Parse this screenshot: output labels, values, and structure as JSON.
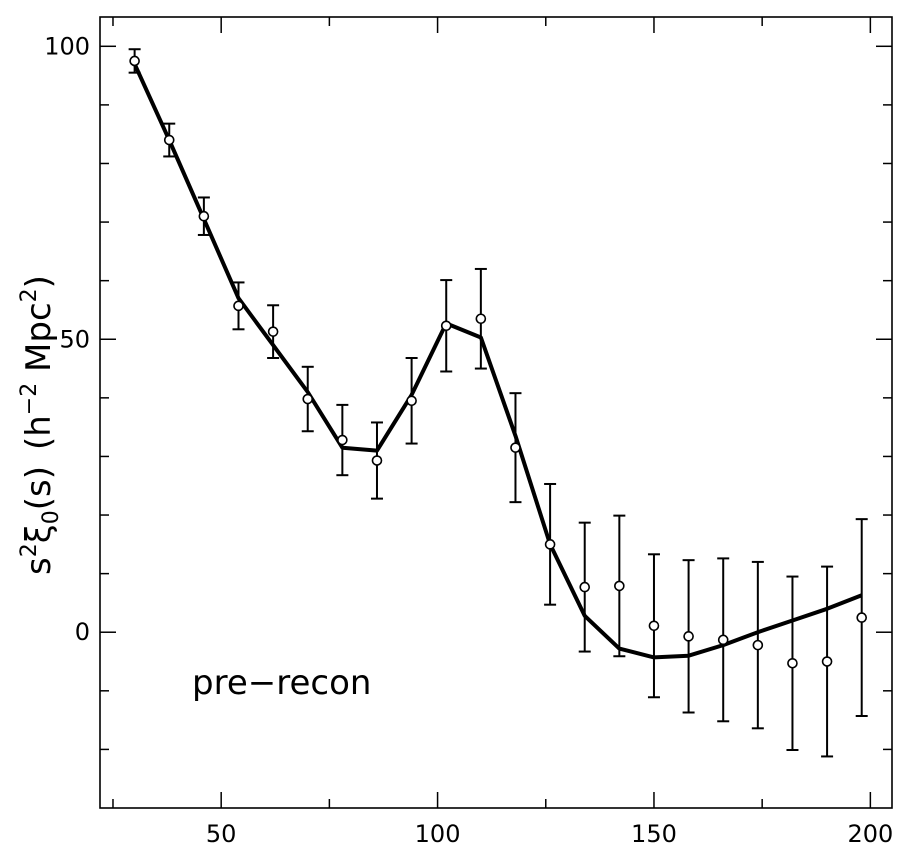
{
  "chart_data": {
    "type": "scatter",
    "title": "",
    "xlabel": "",
    "ylabel": {
      "s": "s",
      "sq": "2",
      "xi": "ξ",
      "sub": "0",
      "args": "(s)",
      "units_open": "(h",
      "units_exp": "−2",
      "units_mid": " Mpc",
      "units_sq": "2",
      "units_close": ")"
    },
    "annotation": "pre−recon",
    "xlim": [
      22,
      205
    ],
    "ylim": [
      -30,
      105
    ],
    "x_ticks": [
      50,
      100,
      150,
      200
    ],
    "x_tick_labels": [
      "50",
      "100",
      "150",
      "200"
    ],
    "y_ticks": [
      0,
      50,
      100
    ],
    "y_tick_labels": [
      "0",
      "50",
      "100"
    ],
    "grid": false,
    "legend": "none",
    "series": [
      {
        "kind": "points_with_errors",
        "x": [
          30,
          38,
          46,
          54,
          62,
          70,
          78,
          86,
          94,
          102,
          110,
          118,
          126,
          134,
          142,
          150,
          158,
          166,
          174,
          182,
          190,
          198
        ],
        "y": [
          97.5,
          84.0,
          71.0,
          55.7,
          51.3,
          39.8,
          32.8,
          29.3,
          39.5,
          52.3,
          53.5,
          31.5,
          15.0,
          7.7,
          7.9,
          1.1,
          -0.7,
          -1.3,
          -2.2,
          -5.3,
          -5.0,
          2.5
        ],
        "yerr": [
          2.0,
          2.8,
          3.2,
          4.0,
          4.5,
          5.5,
          6.0,
          6.5,
          7.3,
          7.8,
          8.5,
          9.3,
          10.3,
          11.0,
          12.0,
          12.2,
          13.0,
          13.9,
          14.2,
          14.8,
          16.2,
          16.8
        ]
      },
      {
        "kind": "model_line",
        "x": [
          30,
          38,
          46,
          54,
          62,
          70,
          78,
          86,
          94,
          102,
          110,
          118,
          126,
          134,
          142,
          150,
          158,
          166,
          174,
          182,
          190,
          198
        ],
        "y": [
          97.0,
          84.0,
          70.5,
          57.0,
          49.0,
          41.0,
          31.5,
          31.0,
          40.5,
          52.7,
          50.3,
          33.5,
          15.0,
          2.8,
          -2.8,
          -4.3,
          -4.0,
          -2.2,
          0.0,
          2.0,
          4.0,
          6.3
        ]
      }
    ],
    "colors": {
      "line": "#000000",
      "marker_fill": "#ffffff",
      "axis": "#000000"
    }
  }
}
